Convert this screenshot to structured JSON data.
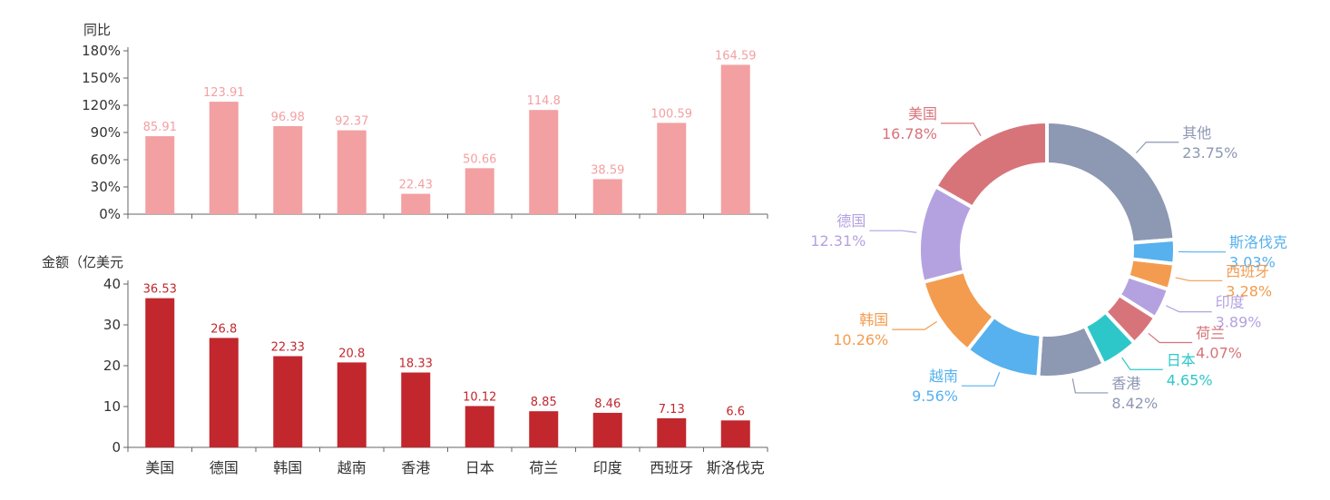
{
  "chart_data": [
    {
      "type": "bar",
      "ylabel": "同比",
      "categories": [
        "美国",
        "德国",
        "韩国",
        "越南",
        "香港",
        "日本",
        "荷兰",
        "印度",
        "西班牙",
        "斯洛伐克"
      ],
      "values": [
        85.91,
        123.91,
        96.98,
        92.37,
        22.43,
        50.66,
        114.8,
        38.59,
        100.59,
        164.59
      ],
      "value_labels": [
        "85.91",
        "123.91",
        "96.98",
        "92.37",
        "22.43",
        "50.66",
        "114.8",
        "38.59",
        "100.59",
        "164.59"
      ],
      "ylim": [
        0,
        180
      ],
      "yticks": [
        0,
        30,
        60,
        90,
        120,
        150,
        180
      ],
      "ytick_labels": [
        "0%",
        "30%",
        "60%",
        "90%",
        "120%",
        "150%",
        "180%"
      ],
      "color": "#f3a0a2",
      "grid": false
    },
    {
      "type": "bar",
      "ylabel": "金额（亿美元",
      "categories": [
        "美国",
        "德国",
        "韩国",
        "越南",
        "香港",
        "日本",
        "荷兰",
        "印度",
        "西班牙",
        "斯洛伐克"
      ],
      "values": [
        36.53,
        26.8,
        22.33,
        20.8,
        18.33,
        10.12,
        8.85,
        8.46,
        7.13,
        6.6
      ],
      "value_labels": [
        "36.53",
        "26.8",
        "22.33",
        "20.8",
        "18.33",
        "10.12",
        "8.85",
        "8.46",
        "7.13",
        "6.6"
      ],
      "ylim": [
        0,
        40
      ],
      "yticks": [
        0,
        10,
        20,
        30,
        40
      ],
      "ytick_labels": [
        "0",
        "10",
        "20",
        "30",
        "40"
      ],
      "color": "#c1272d",
      "grid": false
    },
    {
      "type": "pie",
      "donut": true,
      "slices": [
        {
          "name": "其他",
          "value": 23.75,
          "label": "23.75%",
          "color": "#8d98b3"
        },
        {
          "name": "斯洛伐克",
          "value": 3.03,
          "label": "3.03%",
          "color": "#56b1ee"
        },
        {
          "name": "西班牙",
          "value": 3.28,
          "label": "3.28%",
          "color": "#f39c4f"
        },
        {
          "name": "印度",
          "value": 3.89,
          "label": "3.89%",
          "color": "#b4a2e0"
        },
        {
          "name": "荷兰",
          "value": 4.07,
          "label": "4.07%",
          "color": "#d7747a"
        },
        {
          "name": "日本",
          "value": 4.65,
          "label": "4.65%",
          "color": "#2ec7c9"
        },
        {
          "name": "香港",
          "value": 8.42,
          "label": "8.42%",
          "color": "#8d98b3"
        },
        {
          "name": "越南",
          "value": 9.56,
          "label": "9.56%",
          "color": "#56b1ee"
        },
        {
          "name": "韩国",
          "value": 10.26,
          "label": "10.26%",
          "color": "#f39c4f"
        },
        {
          "name": "德国",
          "value": 12.31,
          "label": "12.31%",
          "color": "#b4a2e0"
        },
        {
          "name": "美国",
          "value": 16.78,
          "label": "16.78%",
          "color": "#d7747a"
        }
      ]
    }
  ]
}
